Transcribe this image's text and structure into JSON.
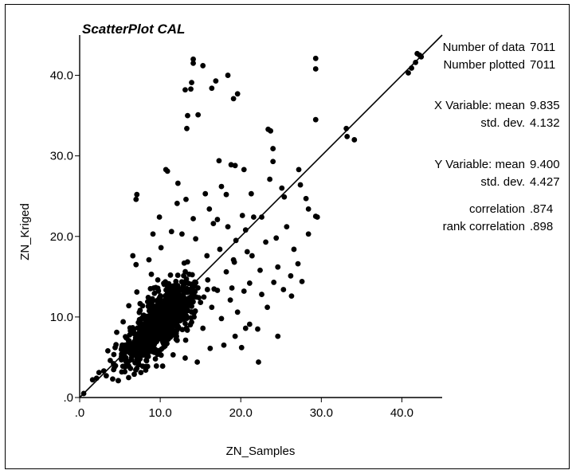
{
  "chart_data": {
    "type": "scatter",
    "title": "ScatterPlot CAL",
    "xlabel": "ZN_Samples",
    "ylabel": "ZN_Kriged",
    "xlim": [
      0,
      45
    ],
    "ylim": [
      0,
      45
    ],
    "xticks": [
      0,
      10,
      20,
      30,
      40
    ],
    "xtick_labels": [
      ".0",
      "10.0",
      "20.0",
      "30.0",
      "40.0"
    ],
    "yticks": [
      0,
      10,
      20,
      30,
      40
    ],
    "ytick_labels": [
      ".0",
      "10.0",
      "20.0",
      "30.0",
      "40.0"
    ],
    "grid": false,
    "reference_line": {
      "from": [
        0,
        0
      ],
      "to": [
        45,
        45
      ]
    },
    "point_color": "#000000",
    "stats": [
      {
        "label": "Number of data",
        "value": "7011"
      },
      {
        "label": "Number plotted",
        "value": "7011"
      },
      {
        "label": "X Variable: mean",
        "value": "9.835"
      },
      {
        "label": "std. dev.",
        "value": "4.132"
      },
      {
        "label": "Y Variable: mean",
        "value": "9.400"
      },
      {
        "label": "std. dev.",
        "value": "4.427"
      },
      {
        "label": "correlation",
        "value": ".874"
      },
      {
        "label": "rank correlation",
        "value": ".898"
      }
    ],
    "points": [
      [
        0.5,
        0.5
      ],
      [
        1.6,
        2.2
      ],
      [
        2.1,
        2.4
      ],
      [
        2.4,
        3.1
      ],
      [
        3.0,
        3.3
      ],
      [
        3.3,
        2.7
      ],
      [
        3.8,
        4.6
      ],
      [
        4.1,
        2.3
      ],
      [
        4.2,
        4.2
      ],
      [
        3.5,
        5.8
      ],
      [
        4.4,
        6.2
      ],
      [
        5.2,
        5.4
      ],
      [
        5.8,
        7.4
      ],
      [
        6.1,
        3.9
      ],
      [
        6.3,
        8.3
      ],
      [
        7.1,
        6.5
      ],
      [
        7.5,
        4.8
      ],
      [
        8.1,
        8.4
      ],
      [
        8.6,
        5.8
      ],
      [
        9.1,
        7.4
      ],
      [
        9.4,
        11.1
      ],
      [
        10.2,
        8.9
      ],
      [
        10.6,
        6.4
      ],
      [
        11.1,
        13.2
      ],
      [
        11.4,
        9.6
      ],
      [
        12.1,
        7.1
      ],
      [
        12.5,
        11.9
      ],
      [
        13.1,
        9.2
      ],
      [
        13.6,
        15.3
      ],
      [
        14.2,
        10.5
      ],
      [
        14.8,
        12.4
      ],
      [
        15.3,
        8.6
      ],
      [
        15.9,
        14.6
      ],
      [
        16.4,
        11.2
      ],
      [
        17.1,
        13.3
      ],
      [
        17.6,
        9.8
      ],
      [
        18.2,
        15.6
      ],
      [
        18.7,
        12.1
      ],
      [
        19.2,
        16.8
      ],
      [
        19.6,
        10.6
      ],
      [
        20.4,
        13.2
      ],
      [
        21.1,
        9.1
      ],
      [
        21.4,
        17.6
      ],
      [
        22.1,
        8.5
      ],
      [
        22.6,
        12.8
      ],
      [
        23.3,
        11.2
      ],
      [
        24.1,
        14.3
      ],
      [
        24.6,
        16.2
      ],
      [
        25.3,
        13.4
      ],
      [
        26.2,
        15.1
      ],
      [
        27.1,
        16.6
      ],
      [
        28.4,
        23.4
      ],
      [
        29.3,
        22.5
      ],
      [
        7.0,
        16.5
      ],
      [
        7.1,
        25.2
      ],
      [
        7.0,
        24.6
      ],
      [
        9.9,
        22.4
      ],
      [
        10.7,
        28.3
      ],
      [
        10.9,
        28.1
      ],
      [
        12.2,
        26.6
      ],
      [
        13.1,
        38.2
      ],
      [
        13.4,
        35.0
      ],
      [
        13.8,
        38.3
      ],
      [
        14.1,
        42.0
      ],
      [
        14.1,
        41.5
      ],
      [
        13.9,
        39.1
      ],
      [
        13.3,
        33.4
      ],
      [
        14.7,
        35.1
      ],
      [
        15.3,
        41.2
      ],
      [
        16.4,
        38.4
      ],
      [
        16.9,
        39.3
      ],
      [
        18.4,
        40.0
      ],
      [
        19.1,
        37.1
      ],
      [
        19.6,
        37.7
      ],
      [
        17.3,
        29.4
      ],
      [
        17.6,
        26.2
      ],
      [
        18.8,
        28.9
      ],
      [
        19.3,
        28.8
      ],
      [
        20.4,
        28.3
      ],
      [
        21.3,
        25.3
      ],
      [
        23.4,
        33.3
      ],
      [
        23.7,
        33.1
      ],
      [
        24.0,
        30.9
      ],
      [
        24.0,
        29.3
      ],
      [
        23.6,
        27.1
      ],
      [
        25.1,
        26.0
      ],
      [
        27.2,
        28.3
      ],
      [
        27.4,
        26.4
      ],
      [
        28.1,
        24.7
      ],
      [
        29.5,
        22.4
      ],
      [
        29.3,
        34.5
      ],
      [
        29.3,
        42.1
      ],
      [
        29.3,
        40.8
      ],
      [
        33.1,
        33.4
      ],
      [
        33.2,
        32.4
      ],
      [
        34.1,
        32.0
      ],
      [
        40.8,
        40.3
      ],
      [
        41.2,
        40.9
      ],
      [
        41.7,
        41.6
      ],
      [
        41.9,
        42.7
      ],
      [
        42.2,
        42.5
      ],
      [
        42.4,
        42.3
      ],
      [
        22.6,
        22.4
      ],
      [
        20.6,
        20.8
      ],
      [
        25.4,
        24.9
      ],
      [
        26.6,
        18.4
      ],
      [
        28.4,
        20.3
      ],
      [
        27.6,
        14.4
      ],
      [
        26.3,
        12.6
      ],
      [
        24.6,
        7.6
      ],
      [
        22.2,
        4.4
      ],
      [
        20.6,
        8.6
      ],
      [
        19.1,
        17.1
      ],
      [
        19.4,
        19.5
      ],
      [
        21.6,
        22.4
      ],
      [
        17.1,
        22.1
      ],
      [
        14.1,
        22.2
      ],
      [
        13.2,
        24.6
      ],
      [
        12.1,
        24.1
      ],
      [
        11.4,
        20.6
      ],
      [
        10.1,
        18.6
      ],
      [
        9.1,
        20.3
      ],
      [
        8.6,
        17.1
      ],
      [
        6.6,
        17.6
      ],
      [
        7.1,
        13.1
      ],
      [
        6.1,
        11.4
      ],
      [
        5.4,
        9.4
      ],
      [
        4.6,
        8.1
      ],
      [
        16.6,
        21.6
      ],
      [
        18.2,
        25.2
      ],
      [
        15.6,
        25.3
      ],
      [
        16.1,
        23.4
      ],
      [
        12.7,
        20.3
      ],
      [
        14.4,
        19.7
      ],
      [
        15.8,
        17.6
      ],
      [
        17.4,
        18.4
      ],
      [
        18.9,
        13.6
      ],
      [
        19.3,
        7.6
      ],
      [
        20.1,
        6.2
      ],
      [
        17.9,
        6.5
      ],
      [
        16.2,
        6.1
      ],
      [
        14.6,
        4.4
      ],
      [
        13.1,
        4.9
      ],
      [
        11.6,
        5.3
      ],
      [
        10.3,
        3.9
      ],
      [
        9.4,
        4.8
      ],
      [
        8.2,
        3.4
      ],
      [
        7.6,
        3.1
      ],
      [
        5.6,
        3.2
      ],
      [
        4.8,
        2.1
      ],
      [
        9.7,
        14.6
      ],
      [
        8.9,
        15.3
      ],
      [
        24.4,
        19.8
      ],
      [
        25.7,
        21.2
      ],
      [
        23.1,
        19.3
      ],
      [
        22.4,
        15.8
      ],
      [
        21.1,
        14.2
      ],
      [
        20.8,
        18.1
      ],
      [
        18.4,
        21.2
      ],
      [
        20.2,
        22.6
      ]
    ]
  }
}
